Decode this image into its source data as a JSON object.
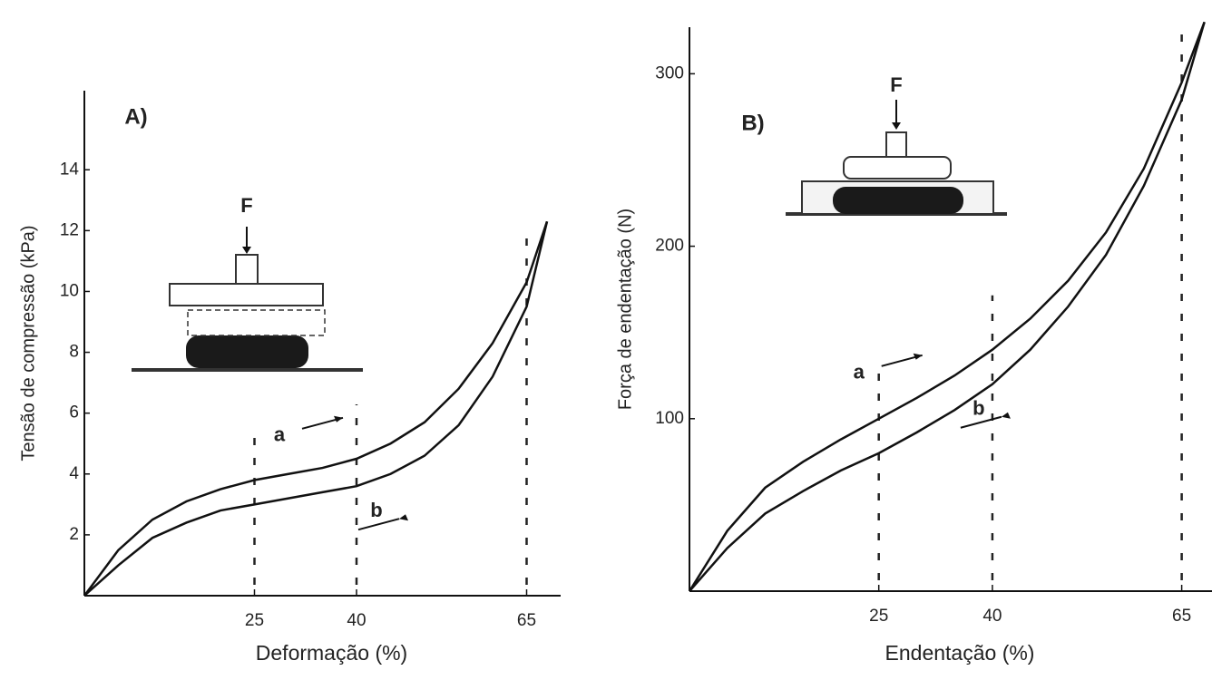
{
  "chart_data": [
    {
      "type": "line",
      "title": "A)",
      "xlabel": "Deformação (%)",
      "ylabel": "Tensão de compressão (kPa)",
      "inset_label": "F",
      "x": [
        0,
        5,
        10,
        15,
        20,
        25,
        30,
        35,
        40,
        45,
        50,
        55,
        60,
        65,
        68
      ],
      "series": [
        {
          "name": "a",
          "color": "#111111",
          "values": [
            0,
            1.5,
            2.5,
            3.1,
            3.5,
            3.8,
            4.0,
            4.2,
            4.5,
            5.0,
            5.7,
            6.8,
            8.3,
            10.3,
            12.3
          ]
        },
        {
          "name": "b",
          "color": "#111111",
          "values": [
            0,
            1.0,
            1.9,
            2.4,
            2.8,
            3.0,
            3.2,
            3.4,
            3.6,
            4.0,
            4.6,
            5.6,
            7.2,
            9.5,
            12.3
          ]
        }
      ],
      "xlim": [
        0,
        70
      ],
      "xticks": [
        25,
        40,
        65
      ],
      "ylim": [
        0,
        16.6
      ],
      "yticks": [
        2,
        4,
        6,
        8,
        10,
        12,
        14
      ],
      "xgrid": true
    },
    {
      "type": "line",
      "title": "B)",
      "xlabel": "Endentação (%)",
      "ylabel": "Força de endentação (N)",
      "inset_label": "F",
      "x": [
        0,
        5,
        10,
        15,
        20,
        25,
        30,
        35,
        40,
        45,
        50,
        55,
        60,
        65,
        68
      ],
      "series": [
        {
          "name": "a",
          "color": "#111111",
          "values": [
            0,
            35,
            60,
            75,
            88,
            100,
            112,
            125,
            140,
            158,
            180,
            208,
            245,
            295,
            330
          ]
        },
        {
          "name": "b",
          "color": "#111111",
          "values": [
            0,
            25,
            45,
            58,
            70,
            80,
            92,
            105,
            120,
            140,
            165,
            195,
            235,
            285,
            330
          ]
        }
      ],
      "xlim": [
        0,
        69
      ],
      "xticks": [
        25,
        40,
        65
      ],
      "ylim": [
        0,
        327
      ],
      "yticks": [
        100,
        200,
        300
      ],
      "xgrid": true
    }
  ]
}
